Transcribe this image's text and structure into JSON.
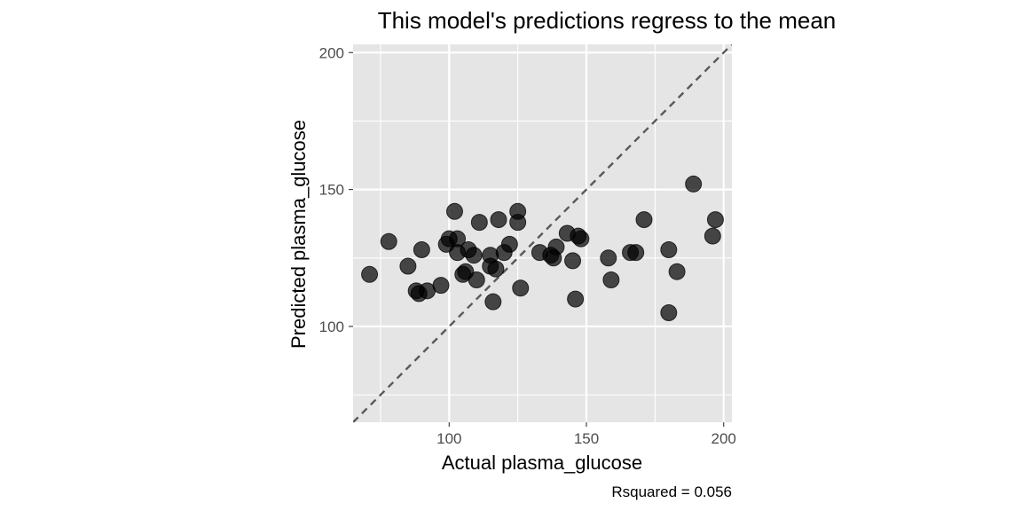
{
  "chart_data": {
    "type": "scatter",
    "title": "This model's predictions regress to the mean",
    "xlabel": "Actual  plasma_glucose",
    "ylabel": "Predicted  plasma_glucose",
    "caption": "Rsquared = 0.056",
    "xlim": [
      65,
      203
    ],
    "ylim": [
      65,
      203
    ],
    "x_ticks": [
      100,
      150,
      200
    ],
    "y_ticks": [
      100,
      150,
      200
    ],
    "x_minor": [
      75,
      125,
      175
    ],
    "y_minor": [
      75,
      125,
      175
    ],
    "reference_line": {
      "slope": 1,
      "intercept": 0,
      "style": "dashed"
    },
    "grid": true,
    "points": [
      {
        "x": 71,
        "y": 119
      },
      {
        "x": 78,
        "y": 131
      },
      {
        "x": 85,
        "y": 122
      },
      {
        "x": 88,
        "y": 113
      },
      {
        "x": 89,
        "y": 112
      },
      {
        "x": 90,
        "y": 128
      },
      {
        "x": 92,
        "y": 113
      },
      {
        "x": 97,
        "y": 115
      },
      {
        "x": 99,
        "y": 130
      },
      {
        "x": 100,
        "y": 132
      },
      {
        "x": 102,
        "y": 142
      },
      {
        "x": 103,
        "y": 132
      },
      {
        "x": 103,
        "y": 127
      },
      {
        "x": 105,
        "y": 119
      },
      {
        "x": 106,
        "y": 120
      },
      {
        "x": 107,
        "y": 128
      },
      {
        "x": 109,
        "y": 126
      },
      {
        "x": 110,
        "y": 117
      },
      {
        "x": 111,
        "y": 138
      },
      {
        "x": 115,
        "y": 126
      },
      {
        "x": 115,
        "y": 122
      },
      {
        "x": 116,
        "y": 109
      },
      {
        "x": 117,
        "y": 121
      },
      {
        "x": 118,
        "y": 139
      },
      {
        "x": 120,
        "y": 127
      },
      {
        "x": 122,
        "y": 130
      },
      {
        "x": 125,
        "y": 142
      },
      {
        "x": 125,
        "y": 138
      },
      {
        "x": 126,
        "y": 114
      },
      {
        "x": 133,
        "y": 127
      },
      {
        "x": 137,
        "y": 126
      },
      {
        "x": 138,
        "y": 125
      },
      {
        "x": 139,
        "y": 129
      },
      {
        "x": 143,
        "y": 134
      },
      {
        "x": 145,
        "y": 124
      },
      {
        "x": 146,
        "y": 110
      },
      {
        "x": 147,
        "y": 133
      },
      {
        "x": 148,
        "y": 132
      },
      {
        "x": 158,
        "y": 125
      },
      {
        "x": 159,
        "y": 117
      },
      {
        "x": 166,
        "y": 127
      },
      {
        "x": 168,
        "y": 127
      },
      {
        "x": 171,
        "y": 139
      },
      {
        "x": 180,
        "y": 105
      },
      {
        "x": 180,
        "y": 128
      },
      {
        "x": 183,
        "y": 120
      },
      {
        "x": 189,
        "y": 152
      },
      {
        "x": 196,
        "y": 133
      },
      {
        "x": 197,
        "y": 139
      }
    ]
  }
}
